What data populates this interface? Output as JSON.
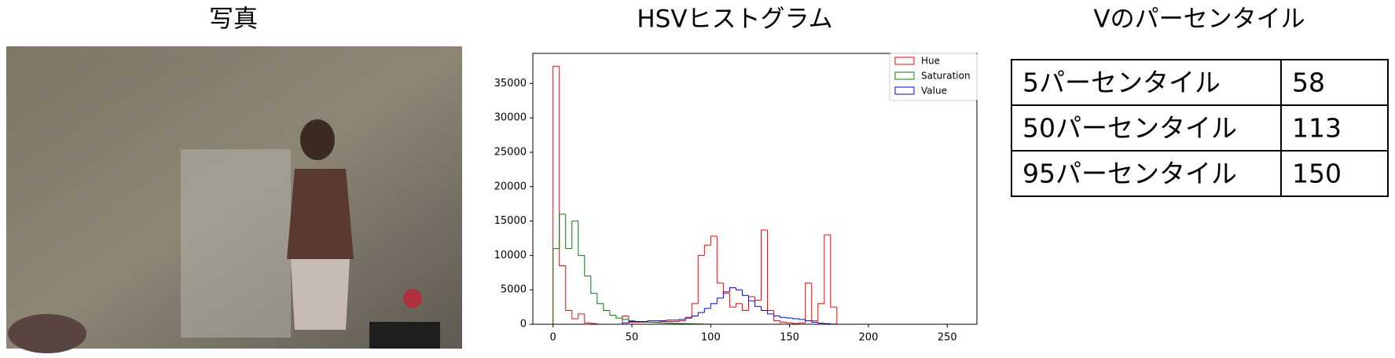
{
  "photo": {
    "title": "写真"
  },
  "chart_data": {
    "type": "histogram",
    "title": "HSVヒストグラム",
    "bins": [
      0,
      4,
      8,
      12,
      16,
      20,
      24,
      28,
      32,
      36,
      40,
      44,
      48,
      52,
      56,
      60,
      64,
      68,
      72,
      76,
      80,
      84,
      88,
      92,
      96,
      100,
      104,
      108,
      112,
      116,
      120,
      124,
      128,
      132,
      136,
      140,
      144,
      148,
      152,
      156,
      160,
      164,
      168,
      172,
      176,
      180,
      184,
      188,
      192,
      196,
      200,
      204,
      208,
      212,
      216,
      220,
      224,
      228,
      232,
      236,
      240,
      244,
      248,
      252,
      256
    ],
    "series": [
      {
        "name": "Hue",
        "color": "#ff0000",
        "values": [
          37500,
          8500,
          2000,
          800,
          1500,
          200,
          100,
          0,
          0,
          0,
          0,
          1200,
          300,
          300,
          300,
          300,
          300,
          400,
          400,
          400,
          500,
          1000,
          3000,
          10000,
          11500,
          12800,
          6000,
          4500,
          2500,
          3000,
          2000,
          4000,
          3500,
          13700,
          2000,
          500,
          300,
          200,
          100,
          200,
          6000,
          500,
          3000,
          13000,
          2500,
          0,
          0,
          0,
          0,
          0,
          0,
          0,
          0,
          0,
          0,
          0,
          0,
          0,
          0,
          0,
          0,
          0,
          0,
          0
        ]
      },
      {
        "name": "Saturation",
        "color": "#008000",
        "values": [
          11000,
          16000,
          11000,
          15000,
          10000,
          7000,
          4500,
          3000,
          2000,
          1300,
          900,
          700,
          500,
          400,
          350,
          300,
          250,
          200,
          150,
          120,
          100,
          80,
          60,
          40,
          20,
          0,
          0,
          0,
          0,
          0,
          0,
          0,
          0,
          0,
          0,
          0,
          0,
          0,
          0,
          0,
          0,
          0,
          0,
          0,
          0,
          0,
          0,
          0,
          0,
          0,
          0,
          0,
          0,
          0,
          0,
          0,
          0,
          0,
          0,
          0,
          0,
          0,
          0,
          0
        ]
      },
      {
        "name": "Value",
        "color": "#0000ff",
        "values": [
          0,
          0,
          0,
          0,
          0,
          0,
          0,
          0,
          0,
          0,
          0,
          200,
          400,
          400,
          400,
          500,
          500,
          500,
          600,
          600,
          700,
          900,
          1200,
          1700,
          2300,
          3000,
          3800,
          4700,
          5300,
          5000,
          4200,
          3400,
          2600,
          2000,
          1500,
          1200,
          1000,
          900,
          800,
          700,
          500,
          300,
          150,
          80,
          30,
          0,
          0,
          0,
          0,
          0,
          0,
          0,
          0,
          0,
          0,
          0,
          0,
          0,
          0,
          0,
          0,
          0,
          0,
          0
        ]
      }
    ],
    "xlim": [
      -12.8,
      268.8
    ],
    "ylim": [
      0,
      39375
    ],
    "xticks": [
      0,
      50,
      100,
      150,
      200,
      250
    ],
    "yticks": [
      0,
      5000,
      10000,
      15000,
      20000,
      25000,
      30000,
      35000
    ],
    "legend": "upper right"
  },
  "table": {
    "title": "Vのパーセンタイル",
    "rows": [
      [
        "5パーセンタイル",
        58
      ],
      [
        "50パーセンタイル",
        113
      ],
      [
        "95パーセンタイル",
        150
      ]
    ]
  }
}
